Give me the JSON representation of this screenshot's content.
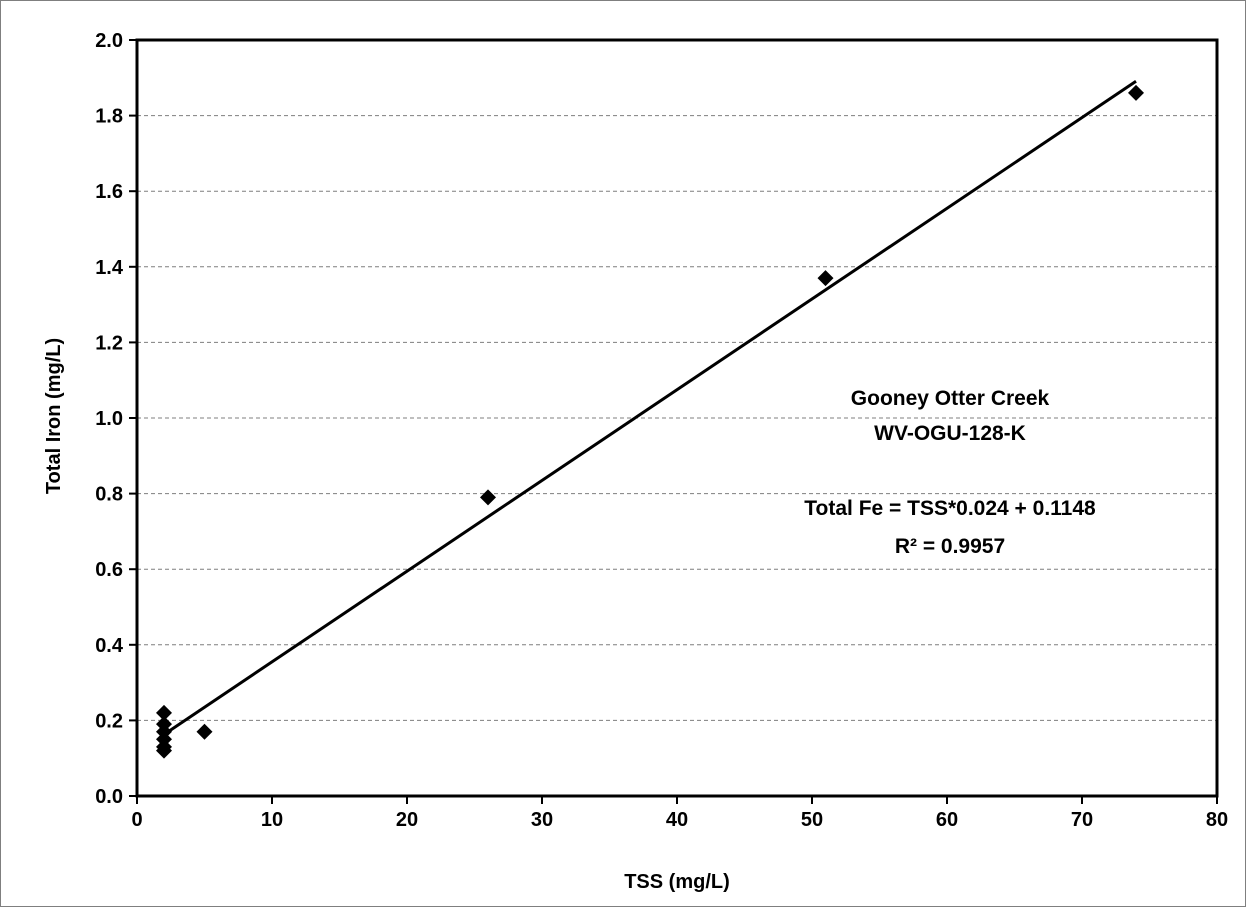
{
  "chart_data": {
    "type": "scatter",
    "title": "",
    "xlabel": "TSS (mg/L)",
    "ylabel": "Total Iron (mg/L)",
    "xlim": [
      0,
      80
    ],
    "ylim": [
      0,
      2.0
    ],
    "x_ticks": [
      "0",
      "10",
      "20",
      "30",
      "40",
      "50",
      "60",
      "70",
      "80"
    ],
    "y_ticks": [
      "0.0",
      "0.2",
      "0.4",
      "0.6",
      "0.8",
      "1.0",
      "1.2",
      "1.4",
      "1.6",
      "1.8",
      "2.0"
    ],
    "grid": "horizontal-dashed",
    "legend": "none",
    "marker": "diamond",
    "marker_color": "#000000",
    "series": [
      {
        "points": [
          {
            "x": 2,
            "y": 0.22
          },
          {
            "x": 2,
            "y": 0.19
          },
          {
            "x": 2,
            "y": 0.17
          },
          {
            "x": 2,
            "y": 0.15
          },
          {
            "x": 2,
            "y": 0.13
          },
          {
            "x": 2,
            "y": 0.12
          },
          {
            "x": 5,
            "y": 0.17
          },
          {
            "x": 26,
            "y": 0.79
          },
          {
            "x": 51,
            "y": 1.37
          },
          {
            "x": 74,
            "y": 1.86
          }
        ]
      }
    ],
    "trendline": {
      "slope": 0.024,
      "intercept": 0.1148,
      "x_range": [
        2,
        74
      ]
    },
    "annotations": {
      "site_name": "Gooney Otter Creek",
      "site_id": "WV-OGU-128-K",
      "equation": "Total Fe = TSS*0.024 + 0.1148",
      "r_squared": "R² = 0.9957"
    }
  }
}
